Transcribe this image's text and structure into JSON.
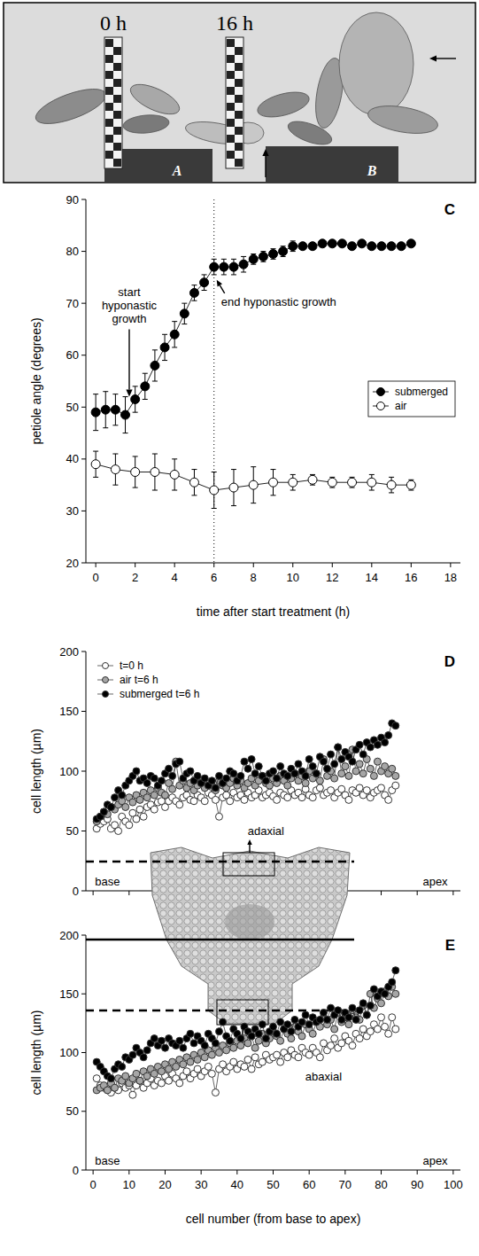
{
  "photo_panel": {
    "labels": [
      "0 h",
      "16 h"
    ],
    "plants": [
      "A",
      "B"
    ]
  },
  "chart_data": [
    {
      "type": "line",
      "panel_label": "C",
      "x_label": "time after start treatment (h)",
      "y_label": "petiole angle (degrees)",
      "xlim": [
        -0.5,
        18.5
      ],
      "xticks": [
        0,
        2,
        4,
        6,
        8,
        10,
        12,
        14,
        16,
        18
      ],
      "ylim": [
        20,
        90
      ],
      "yticks": [
        20,
        30,
        40,
        50,
        60,
        70,
        80,
        90
      ],
      "vline": 6,
      "legend": "right",
      "annotations": [
        {
          "text": "start hyponastic growth",
          "x": 1.7,
          "y": 52
        },
        {
          "text": "end hyponastic growth",
          "x": 6,
          "y": 75
        }
      ],
      "series": [
        {
          "name": "submerged",
          "color": "#000000",
          "marker": "circle",
          "x": [
            0,
            0.5,
            1,
            1.5,
            2,
            2.5,
            3,
            3.5,
            4,
            4.5,
            5,
            5.5,
            6,
            6.5,
            7,
            7.5,
            8,
            8.5,
            9,
            9.5,
            10,
            10.5,
            11,
            11.5,
            12,
            12.5,
            13,
            13.5,
            14,
            14.5,
            15,
            15.5,
            16
          ],
          "values": [
            49,
            49.5,
            49.5,
            48.5,
            51.5,
            54,
            58,
            61.5,
            64,
            68,
            72,
            74,
            77,
            77,
            77,
            77.5,
            78.5,
            79,
            79.5,
            80,
            81,
            81,
            81,
            81.5,
            81.5,
            81.5,
            81,
            81.5,
            81,
            81,
            81,
            81,
            81.5
          ],
          "errors": [
            3.5,
            3.5,
            3,
            3.5,
            2.5,
            2.5,
            3,
            2.5,
            2.5,
            2,
            1.5,
            1.5,
            1.5,
            1.5,
            1.5,
            1.5,
            1,
            1,
            1,
            1,
            1,
            0.5,
            0.5,
            0.5,
            0.5,
            0.5,
            0.5,
            0.5,
            0.5,
            0.5,
            0.5,
            0.5,
            0.5
          ]
        },
        {
          "name": "air",
          "color": "#ffffff",
          "marker": "circle",
          "x": [
            0,
            1,
            2,
            3,
            4,
            5,
            6,
            7,
            8,
            9,
            10,
            11,
            12,
            13,
            14,
            15,
            16
          ],
          "values": [
            39,
            38,
            37.5,
            37.5,
            37,
            35.5,
            34,
            34.5,
            35,
            35.5,
            35.5,
            36,
            35.5,
            35.5,
            35.5,
            35,
            35
          ],
          "errors": [
            2.5,
            3,
            3,
            3.5,
            3,
            2.5,
            3.5,
            3.5,
            3.5,
            2.5,
            1.5,
            1,
            1,
            1,
            1.5,
            1.5,
            1
          ]
        }
      ]
    },
    {
      "type": "line",
      "panel_label": "D",
      "y_label": "cell length (µm)",
      "xlim": [
        -2,
        102
      ],
      "xticks": [
        0,
        10,
        20,
        30,
        40,
        50,
        60,
        70,
        80,
        90,
        100
      ],
      "ylim": [
        0,
        200
      ],
      "yticks": [
        0,
        50,
        100,
        150,
        200
      ],
      "tick_labels": "y",
      "legend": "upper left",
      "annotations": [
        {
          "text": "adaxial",
          "x": 48,
          "y": 50
        },
        {
          "text": "base",
          "x": 4,
          "y": 8
        },
        {
          "text": "apex",
          "x": 95,
          "y": 8
        }
      ],
      "x": [
        1,
        2,
        3,
        4,
        5,
        6,
        7,
        8,
        9,
        10,
        11,
        12,
        13,
        14,
        15,
        16,
        17,
        18,
        19,
        20,
        21,
        22,
        23,
        24,
        25,
        26,
        27,
        28,
        29,
        30,
        31,
        32,
        33,
        34,
        35,
        36,
        37,
        38,
        39,
        40,
        41,
        42,
        43,
        44,
        45,
        46,
        47,
        48,
        49,
        50,
        51,
        52,
        53,
        54,
        55,
        56,
        57,
        58,
        59,
        60,
        61,
        62,
        63,
        64,
        65,
        66,
        67,
        68,
        69,
        70,
        71,
        72,
        73,
        74,
        75,
        76,
        77,
        78,
        79,
        80,
        81,
        82,
        83,
        84
      ],
      "series": [
        {
          "name": "t=0 h",
          "color": "#ffffff",
          "marker": "circle",
          "values": [
            52,
            56,
            58,
            60,
            52,
            55,
            50,
            62,
            58,
            55,
            65,
            60,
            68,
            62,
            70,
            72,
            68,
            74,
            75,
            70,
            75,
            78,
            75,
            72,
            78,
            80,
            76,
            75,
            80,
            78,
            75,
            82,
            80,
            76,
            62,
            78,
            80,
            75,
            82,
            78,
            80,
            76,
            82,
            78,
            80,
            84,
            78,
            80,
            82,
            79,
            76,
            82,
            80,
            78,
            84,
            80,
            82,
            78,
            85,
            80,
            78,
            84,
            86,
            80,
            82,
            84,
            78,
            82,
            85,
            80,
            76,
            84,
            82,
            86,
            80,
            84,
            78,
            82,
            84,
            86,
            80,
            76,
            84,
            88
          ]
        },
        {
          "name": "air t=6 h",
          "color": "#a6a6a6",
          "marker": "circle",
          "values": [
            58,
            62,
            66,
            64,
            70,
            68,
            72,
            75,
            70,
            78,
            74,
            80,
            76,
            82,
            78,
            84,
            80,
            86,
            82,
            80,
            90,
            85,
            108,
            88,
            92,
            86,
            90,
            84,
            88,
            92,
            86,
            90,
            88,
            84,
            92,
            88,
            86,
            90,
            94,
            88,
            92,
            86,
            90,
            94,
            88,
            92,
            96,
            90,
            88,
            94,
            90,
            96,
            92,
            88,
            94,
            98,
            92,
            96,
            90,
            100,
            94,
            98,
            92,
            110,
            96,
            100,
            94,
            120,
            98,
            104,
            96,
            118,
            100,
            106,
            98,
            110,
            102,
            96,
            108,
            100,
            104,
            98,
            102,
            96
          ]
        },
        {
          "name": "submerged t=6 h",
          "color": "#000000",
          "marker": "circle",
          "values": [
            60,
            62,
            66,
            72,
            70,
            78,
            84,
            80,
            88,
            92,
            96,
            100,
            92,
            94,
            90,
            96,
            94,
            88,
            92,
            98,
            102,
            96,
            106,
            108,
            94,
            98,
            100,
            92,
            96,
            90,
            94,
            88,
            92,
            86,
            96,
            90,
            94,
            100,
            98,
            92,
            96,
            108,
            102,
            110,
            98,
            104,
            96,
            92,
            98,
            100,
            94,
            104,
            98,
            96,
            102,
            98,
            106,
            100,
            96,
            110,
            104,
            98,
            112,
            108,
            102,
            114,
            106,
            120,
            110,
            116,
            112,
            108,
            118,
            122,
            114,
            124,
            120,
            126,
            122,
            128,
            124,
            130,
            140,
            138
          ]
        }
      ]
    },
    {
      "type": "line",
      "panel_label": "E",
      "y_label": "cell length (µm)",
      "x_label": "cell number (from base to apex)",
      "xlim": [
        -2,
        102
      ],
      "xticks": [
        0,
        10,
        20,
        30,
        40,
        50,
        60,
        70,
        80,
        90,
        100
      ],
      "ylim": [
        0,
        200
      ],
      "yticks": [
        0,
        50,
        100,
        150,
        200
      ],
      "annotations": [
        {
          "text": "abaxial",
          "x": 64,
          "y": 80
        },
        {
          "text": "base",
          "x": 4,
          "y": 8
        },
        {
          "text": "apex",
          "x": 95,
          "y": 8
        }
      ],
      "x": [
        1,
        2,
        3,
        4,
        5,
        6,
        7,
        8,
        9,
        10,
        11,
        12,
        13,
        14,
        15,
        16,
        17,
        18,
        19,
        20,
        21,
        22,
        23,
        24,
        25,
        26,
        27,
        28,
        29,
        30,
        31,
        32,
        33,
        34,
        35,
        36,
        37,
        38,
        39,
        40,
        41,
        42,
        43,
        44,
        45,
        46,
        47,
        48,
        49,
        50,
        51,
        52,
        53,
        54,
        55,
        56,
        57,
        58,
        59,
        60,
        61,
        62,
        63,
        64,
        65,
        66,
        67,
        68,
        69,
        70,
        71,
        72,
        73,
        74,
        75,
        76,
        77,
        78,
        79,
        80,
        81,
        82,
        83,
        84
      ],
      "series": [
        {
          "name": "t=0 h",
          "color": "#ffffff",
          "marker": "circle",
          "values": [
            78,
            72,
            70,
            68,
            66,
            70,
            68,
            74,
            70,
            72,
            64,
            72,
            76,
            70,
            74,
            78,
            72,
            76,
            74,
            80,
            76,
            82,
            78,
            74,
            80,
            84,
            78,
            82,
            86,
            80,
            84,
            88,
            82,
            66,
            86,
            90,
            84,
            88,
            92,
            86,
            90,
            88,
            94,
            86,
            96,
            90,
            92,
            98,
            94,
            96,
            98,
            92,
            100,
            96,
            102,
            98,
            96,
            104,
            100,
            98,
            104,
            100,
            96,
            108,
            102,
            106,
            112,
            104,
            108,
            114,
            110,
            106,
            116,
            112,
            120,
            114,
            118,
            124,
            120,
            130,
            122,
            116,
            130,
            120
          ]
        },
        {
          "name": "air t=6 h",
          "color": "#a6a6a6",
          "marker": "circle",
          "values": [
            68,
            70,
            72,
            68,
            74,
            70,
            78,
            76,
            80,
            74,
            78,
            82,
            76,
            84,
            80,
            86,
            82,
            88,
            84,
            90,
            86,
            92,
            88,
            94,
            90,
            96,
            92,
            98,
            94,
            100,
            96,
            102,
            98,
            104,
            100,
            106,
            102,
            108,
            104,
            110,
            106,
            112,
            108,
            114,
            104,
            110,
            116,
            108,
            112,
            118,
            114,
            110,
            120,
            116,
            112,
            122,
            118,
            114,
            124,
            120,
            116,
            126,
            122,
            130,
            124,
            128,
            120,
            134,
            126,
            130,
            124,
            136,
            130,
            128,
            140,
            132,
            150,
            138,
            146,
            142,
            152,
            148,
            156,
            150
          ]
        },
        {
          "name": "submerged t=6 h",
          "color": "#000000",
          "marker": "circle",
          "values": [
            92,
            88,
            84,
            80,
            78,
            86,
            90,
            88,
            96,
            94,
            98,
            104,
            100,
            96,
            102,
            108,
            112,
            106,
            110,
            104,
            112,
            108,
            106,
            110,
            104,
            112,
            116,
            108,
            114,
            110,
            106,
            116,
            112,
            108,
            118,
            126,
            114,
            110,
            120,
            116,
            112,
            122,
            118,
            114,
            120,
            116,
            124,
            112,
            118,
            122,
            116,
            126,
            120,
            124,
            118,
            128,
            122,
            126,
            132,
            124,
            130,
            126,
            128,
            134,
            128,
            138,
            132,
            136,
            128,
            134,
            130,
            138,
            128,
            136,
            142,
            132,
            140,
            154,
            148,
            152,
            150,
            156,
            160,
            170
          ]
        }
      ]
    }
  ]
}
